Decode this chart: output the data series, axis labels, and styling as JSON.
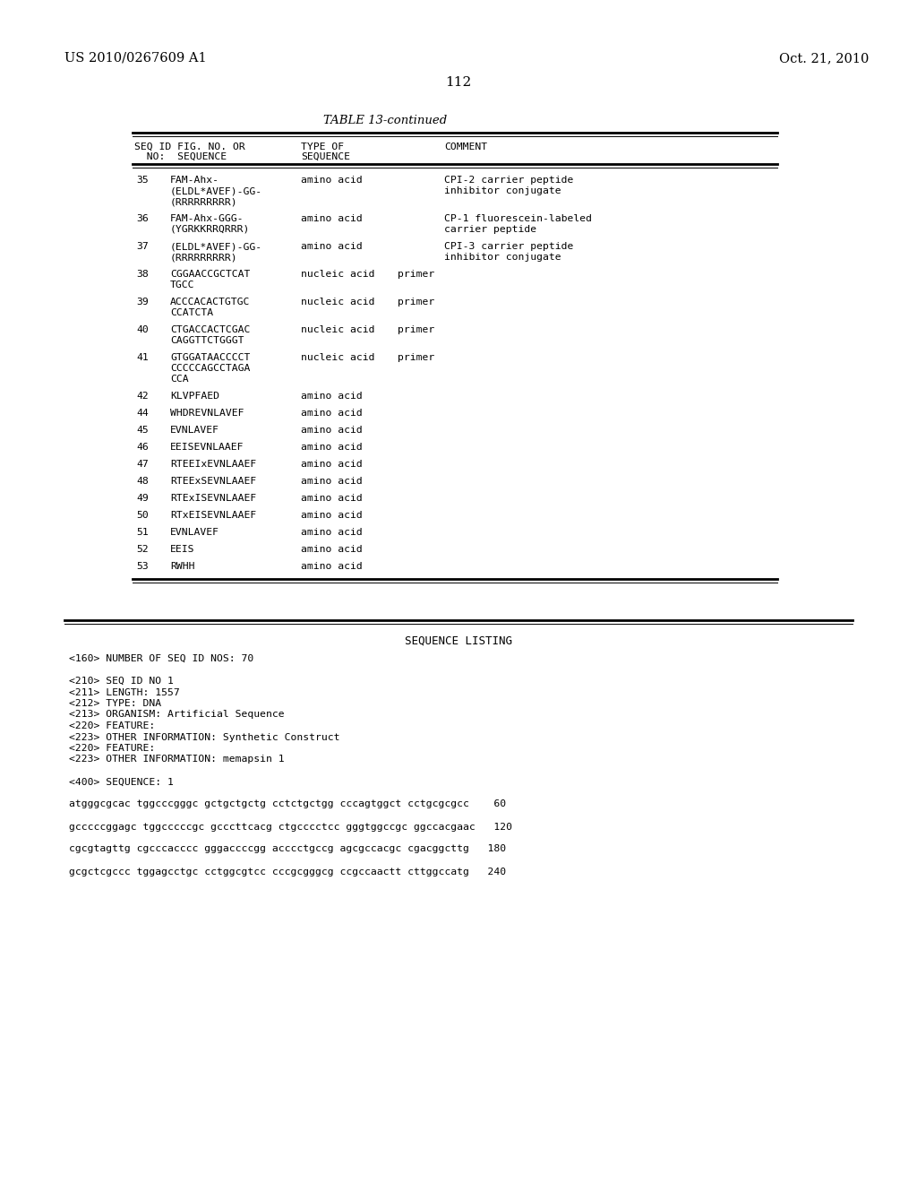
{
  "header_left": "US 2010/0267609 A1",
  "header_right": "Oct. 21, 2010",
  "page_number": "112",
  "table_title": "TABLE 13-continued",
  "table_rows": [
    [
      "35",
      "FAM-Ahx-\n(ELDL*AVEF)-GG-\n(RRRRRRRRR)",
      "amino acid",
      "CPI-2 carrier peptide\ninhibitor conjugate"
    ],
    [
      "36",
      "FAM-Ahx-GGG-\n(YGRKKRRQRRR)",
      "amino acid",
      "CP-1 fluorescein-labeled\ncarrier peptide"
    ],
    [
      "37",
      "(ELDL*AVEF)-GG-\n(RRRRRRRRR)",
      "amino acid",
      "CPI-3 carrier peptide\ninhibitor conjugate"
    ],
    [
      "38",
      "CGGAACCGCTCAT\nTGCC",
      "nucleic acid",
      "primer"
    ],
    [
      "39",
      "ACCCACACTGTGC\nCCATCTA",
      "nucleic acid",
      "primer"
    ],
    [
      "40",
      "CTGACCACTCGAC\nCAGGTTCTGGGT",
      "nucleic acid",
      "primer"
    ],
    [
      "41",
      "GTGGATAACCCCT\nCCCCCAGCCTAGA\nCCA",
      "nucleic acid",
      "primer"
    ],
    [
      "42",
      "KLVPFAED",
      "amino acid",
      ""
    ],
    [
      "44",
      "WHDREVNLAVEF",
      "amino acid",
      ""
    ],
    [
      "45",
      "EVNLAVEF",
      "amino acid",
      ""
    ],
    [
      "46",
      "EEISEVNLAAEF",
      "amino acid",
      ""
    ],
    [
      "47",
      "RTEEIxEVNLAAEF",
      "amino acid",
      ""
    ],
    [
      "48",
      "RTEExSEVNLAAEF",
      "amino acid",
      ""
    ],
    [
      "49",
      "RTExISEVNLAAEF",
      "amino acid",
      ""
    ],
    [
      "50",
      "RTxEISEVNLAAEF",
      "amino acid",
      ""
    ],
    [
      "51",
      "EVNLAVEF",
      "amino acid",
      ""
    ],
    [
      "52",
      "EEIS",
      "amino acid",
      ""
    ],
    [
      "53",
      "RWHH",
      "amino acid",
      ""
    ]
  ],
  "sequence_listing_title": "SEQUENCE LISTING",
  "seq_lines": [
    "<160> NUMBER OF SEQ ID NOS: 70",
    "",
    "<210> SEQ ID NO 1",
    "<211> LENGTH: 1557",
    "<212> TYPE: DNA",
    "<213> ORGANISM: Artificial Sequence",
    "<220> FEATURE:",
    "<223> OTHER INFORMATION: Synthetic Construct",
    "<220> FEATURE:",
    "<223> OTHER INFORMATION: memapsin 1",
    "",
    "<400> SEQUENCE: 1",
    "",
    "atgggcgcac tggcccgggc gctgctgctg cctctgctgg cccagtggct cctgcgcgcc    60",
    "",
    "gcccccggagc tggcccccgc gcccttcacg ctgcccctcc gggtggccgc ggccacgaac   120",
    "",
    "cgcgtagttg cgcccacccc gggaccccgg acccctgccg agcgccacgc cgacggcttg   180",
    "",
    "gcgctcgccc tggagcctgc cctggcgtcc cccgcgggcg ccgccaactt cttggccatg   240"
  ],
  "background_color": "#ffffff",
  "text_color": "#000000"
}
